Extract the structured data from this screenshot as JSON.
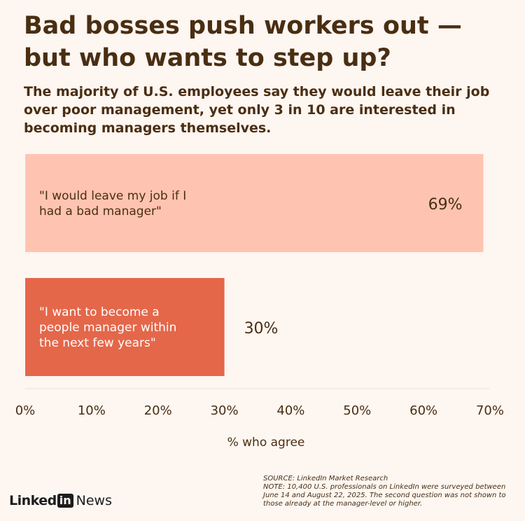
{
  "title": "Bad bosses push workers out — but who wants to step up?",
  "subtitle": "The majority of U.S. employees say they would leave their job over poor management, yet only 3 in 10 are interested in becoming managers themselves.",
  "colors": {
    "bar_1": "#ffc4b1",
    "bar_2": "#e4674a",
    "text": "#4a2e12",
    "background": "#fdf6f1"
  },
  "chart_data": {
    "type": "bar",
    "orientation": "horizontal",
    "categories": [
      [
        "\"I would leave my job if I",
        "had a bad manager\""
      ],
      [
        "\"I want to become a",
        "people manager within",
        "the next few years\""
      ]
    ],
    "values": [
      69,
      30
    ],
    "value_labels": [
      "69%",
      "30%"
    ],
    "xlabel": "% who agree",
    "xlim": [
      0,
      70
    ],
    "xticks": [
      "0%",
      "10%",
      "20%",
      "30%",
      "40%",
      "50%",
      "60%",
      "70%"
    ],
    "grid": false,
    "legend": "none"
  },
  "footer": {
    "source": "SOURCE: LinkedIn Market Research",
    "note_lines": [
      "NOTE: 10,400 U.S. professionals on LinkedIn were surveyed between",
      "June 14 and August 22, 2025. The second question was not shown to",
      "those already at the manager-level or higher."
    ],
    "logo_brand": "Linked",
    "logo_in": "in",
    "logo_news": "News"
  }
}
